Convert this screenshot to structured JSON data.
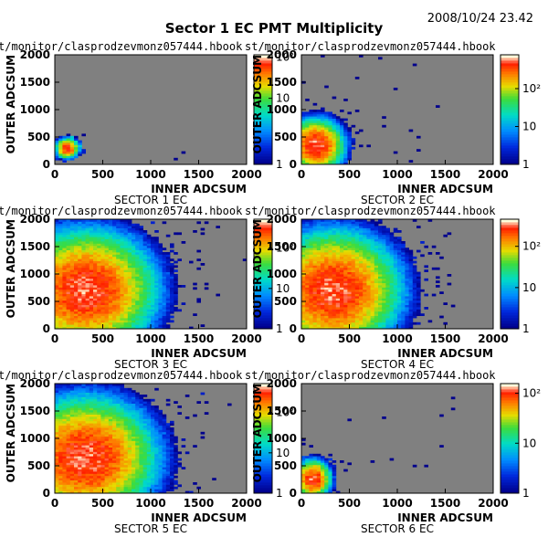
{
  "page": {
    "title": "Sector 1 EC PMT Multiplicity",
    "timestamp": "2008/10/24   23.42"
  },
  "colors": {
    "frame_bg": "#808080",
    "low": "#000090",
    "mid_low": "#0080ff",
    "mid": "#00e0a0",
    "mid_high": "#ffd000",
    "high": "#ff2000",
    "peak": "#ffffd0"
  },
  "chart_data": [
    {
      "type": "heatmap",
      "path_label": "t/monitor/clasprodzevmonz057444.hbook",
      "title": "SECTOR 1 EC",
      "xlabel": "INNER ADCSUM",
      "ylabel": "OUTER ADCSUM",
      "xlim": [
        0,
        2000
      ],
      "ylim": [
        0,
        2000
      ],
      "x_ticks": [
        "0",
        "500",
        "1000",
        "1500",
        "2000"
      ],
      "y_ticks": [
        "0",
        "500",
        "1000",
        "1500",
        "2000"
      ],
      "z_scale": "log",
      "z_ticks": [
        "1",
        "10",
        "10^2"
      ],
      "hotspot": {
        "center": [
          130,
          300
        ],
        "spread": [
          60,
          90
        ],
        "peak_count": 35,
        "counts": 500
      },
      "noise_bins": 3
    },
    {
      "type": "heatmap",
      "path_label": "st/monitor/clasprodzevmonz057444.hbook",
      "title": "SECTOR 2 EC",
      "xlabel": "INNER ADCSUM",
      "ylabel": "OUTER ADCSUM",
      "xlim": [
        0,
        2000
      ],
      "ylim": [
        0,
        2000
      ],
      "x_ticks": [
        "0",
        "500",
        "1000",
        "1500",
        "2000"
      ],
      "y_ticks": [
        "0",
        "500",
        "1000",
        "1500",
        "2000"
      ],
      "z_scale": "log",
      "z_ticks": [
        "1",
        "10",
        "10^2"
      ],
      "hotspot": {
        "center": [
          150,
          350
        ],
        "spread": [
          110,
          180
        ],
        "peak_count": 600,
        "counts": 3000
      },
      "noise_bins": 25
    },
    {
      "type": "heatmap",
      "path_label": "t/monitor/clasprodzevmonz057444.hbook",
      "title": "SECTOR 3 EC",
      "xlabel": "INNER ADCSUM",
      "ylabel": "OUTER ADCSUM",
      "xlim": [
        0,
        2000
      ],
      "ylim": [
        0,
        2000
      ],
      "x_ticks": [
        "0",
        "500",
        "1000",
        "1500",
        "2000"
      ],
      "y_ticks": [
        "0",
        "500",
        "1000",
        "1500",
        "2000"
      ],
      "z_scale": "log",
      "z_ticks": [
        "1",
        "10",
        "10^2"
      ],
      "hotspot": {
        "center": [
          320,
          700
        ],
        "spread": [
          280,
          420
        ],
        "peak_count": 400,
        "counts": 9000
      },
      "noise_bins": 60
    },
    {
      "type": "heatmap",
      "path_label": "st/monitor/clasprodzevmonz057444.hbook",
      "title": "SECTOR 4 EC",
      "xlabel": "INNER ADCSUM",
      "ylabel": "OUTER ADCSUM",
      "xlim": [
        0,
        2000
      ],
      "ylim": [
        0,
        2000
      ],
      "x_ticks": [
        "0",
        "500",
        "1000",
        "1500",
        "2000"
      ],
      "y_ticks": [
        "0",
        "500",
        "1000",
        "1500",
        "2000"
      ],
      "z_scale": "log",
      "z_ticks": [
        "1",
        "10",
        "10^2"
      ],
      "hotspot": {
        "center": [
          330,
          700
        ],
        "spread": [
          270,
          420
        ],
        "peak_count": 350,
        "counts": 9000
      },
      "noise_bins": 60
    },
    {
      "type": "heatmap",
      "path_label": "t/monitor/clasprodzevmonz057444.hbook",
      "title": "SECTOR 5 EC",
      "xlabel": "INNER ADCSUM",
      "ylabel": "OUTER ADCSUM",
      "xlim": [
        0,
        2000
      ],
      "ylim": [
        0,
        2000
      ],
      "x_ticks": [
        "0",
        "500",
        "1000",
        "1500",
        "2000"
      ],
      "y_ticks": [
        "0",
        "500",
        "1000",
        "1500",
        "2000"
      ],
      "z_scale": "log",
      "z_ticks": [
        "1",
        "10",
        "10^2"
      ],
      "hotspot": {
        "center": [
          320,
          650
        ],
        "spread": [
          280,
          420
        ],
        "peak_count": 400,
        "counts": 9000
      },
      "noise_bins": 60
    },
    {
      "type": "heatmap",
      "path_label": "st/monitor/clasprodzevmonz057444.hbook",
      "title": "SECTOR 6 EC",
      "xlabel": "INNER ADCSUM",
      "ylabel": "OUTER ADCSUM",
      "xlim": [
        0,
        2000
      ],
      "ylim": [
        0,
        2000
      ],
      "x_ticks": [
        "0",
        "500",
        "1000",
        "1500",
        "2000"
      ],
      "y_ticks": [
        "0",
        "500",
        "1000",
        "1500",
        "2000"
      ],
      "z_scale": "log",
      "z_ticks": [
        "1",
        "10",
        "10^2"
      ],
      "hotspot": {
        "center": [
          120,
          260
        ],
        "spread": [
          80,
          150
        ],
        "peak_count": 120,
        "counts": 1500
      },
      "noise_bins": 12
    }
  ]
}
